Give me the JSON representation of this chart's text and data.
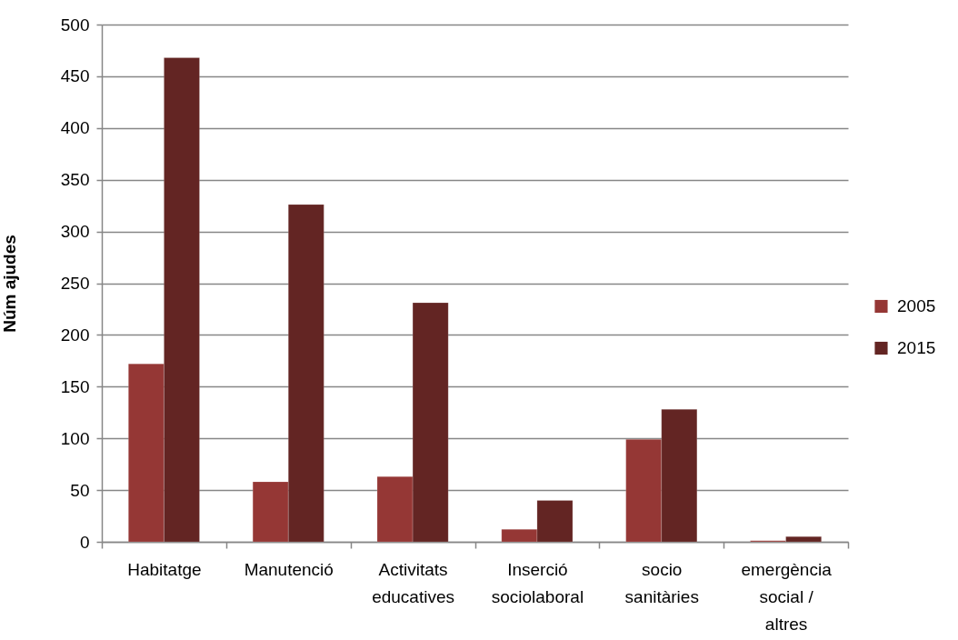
{
  "chart_data": {
    "type": "bar",
    "ylabel": "Núm ajudes",
    "categories": [
      "Habitatge",
      "Manutenció",
      "Activitats educatives",
      "Inserció sociolaboral",
      "socio sanitàries",
      "emergència social / altres"
    ],
    "series": [
      {
        "name": "2005",
        "color": "#953735",
        "values": [
          172,
          58,
          63,
          12,
          99,
          1
        ]
      },
      {
        "name": "2015",
        "color": "#632523",
        "values": [
          468,
          326,
          231,
          40,
          128,
          5
        ]
      }
    ],
    "ylim": [
      0,
      500
    ],
    "yticks": [
      0,
      50,
      100,
      150,
      200,
      250,
      300,
      350,
      400,
      450,
      500
    ],
    "grid": "y",
    "legend": "right"
  }
}
